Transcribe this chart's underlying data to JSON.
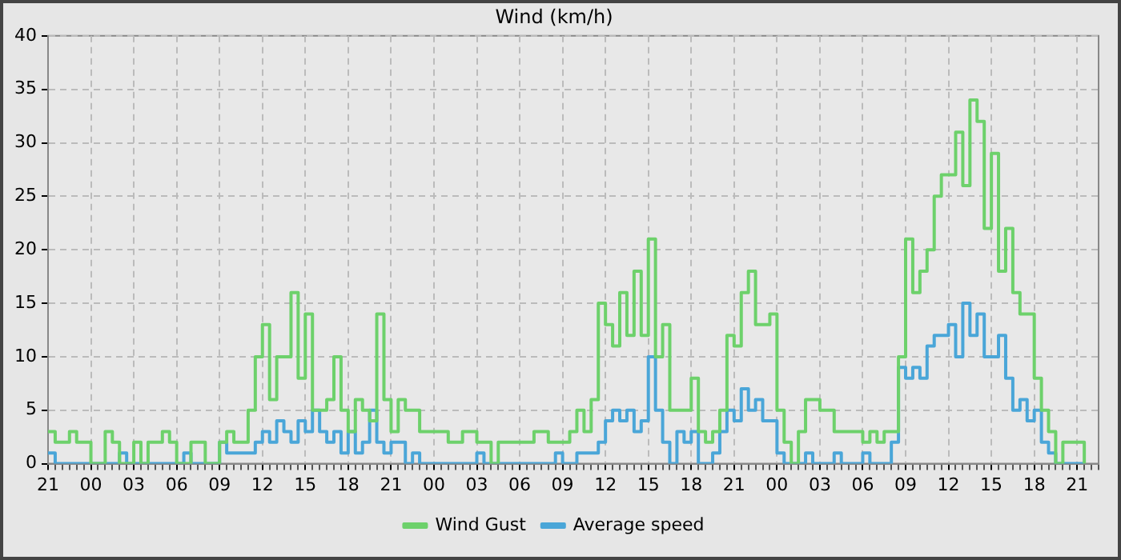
{
  "chart_data": {
    "type": "step",
    "title": "Wind (km/h)",
    "categories": [
      "21",
      null,
      null,
      null,
      null,
      null,
      "00",
      null,
      null,
      null,
      null,
      null,
      "03",
      null,
      null,
      null,
      null,
      null,
      "06",
      null,
      null,
      null,
      null,
      null,
      "09",
      null,
      null,
      null,
      null,
      null,
      "12",
      null,
      null,
      null,
      null,
      null,
      "15",
      null,
      null,
      null,
      null,
      null,
      "18",
      null,
      null,
      null,
      null,
      null,
      "21",
      null,
      null,
      null,
      null,
      null,
      "00",
      null,
      null,
      null,
      null,
      null,
      "03",
      null,
      null,
      null,
      null,
      null,
      "06",
      null,
      null,
      null,
      null,
      null,
      "09",
      null,
      null,
      null,
      null,
      null,
      "12",
      null,
      null,
      null,
      null,
      null,
      "15",
      null,
      null,
      null,
      null,
      null,
      "18",
      null,
      null,
      null,
      null,
      null,
      "21",
      null,
      null,
      null,
      null,
      null,
      "00",
      null,
      null,
      null,
      null,
      null,
      "03",
      null,
      null,
      null,
      null,
      null,
      "06",
      null,
      null,
      null,
      null,
      null,
      "09",
      null,
      null,
      null,
      null,
      null,
      "12",
      null,
      null,
      null,
      null,
      null,
      "15",
      null,
      null,
      null,
      null,
      null,
      "18",
      null,
      null,
      null,
      null,
      null,
      "21",
      null,
      null,
      null
    ],
    "ylim": [
      0,
      40
    ],
    "yticks": [
      0,
      5,
      10,
      15,
      20,
      25,
      30,
      35,
      40
    ],
    "grid": true,
    "legend": "bottom",
    "marker": "none",
    "series": [
      {
        "name": "Wind Gust",
        "color": "#6dd16b",
        "values": [
          3,
          2,
          2,
          3,
          2,
          2,
          0,
          0,
          3,
          2,
          0,
          0,
          2,
          0,
          2,
          2,
          3,
          2,
          0,
          0,
          2,
          2,
          0,
          0,
          2,
          3,
          2,
          2,
          5,
          10,
          13,
          6,
          10,
          10,
          16,
          8,
          14,
          5,
          5,
          6,
          10,
          5,
          3,
          6,
          5,
          4,
          14,
          6,
          3,
          6,
          5,
          5,
          3,
          3,
          3,
          3,
          2,
          2,
          3,
          3,
          2,
          2,
          0,
          2,
          2,
          2,
          2,
          2,
          3,
          3,
          2,
          2,
          2,
          3,
          5,
          3,
          6,
          15,
          13,
          11,
          16,
          12,
          18,
          12,
          21,
          10,
          13,
          5,
          5,
          5,
          8,
          3,
          2,
          3,
          5,
          12,
          11,
          16,
          18,
          13,
          13,
          14,
          5,
          2,
          0,
          3,
          6,
          6,
          5,
          5,
          3,
          3,
          3,
          3,
          2,
          3,
          2,
          3,
          3,
          10,
          21,
          16,
          18,
          20,
          25,
          27,
          27,
          31,
          26,
          34,
          32,
          22,
          29,
          18,
          22,
          16,
          14,
          14,
          8,
          5,
          3,
          0,
          2,
          2,
          2,
          0,
          null,
          null
        ]
      },
      {
        "name": "Average speed",
        "color": "#4aa6d8",
        "values": [
          1,
          0,
          0,
          0,
          0,
          0,
          0,
          0,
          0,
          0,
          1,
          0,
          0,
          0,
          0,
          0,
          0,
          0,
          0,
          1,
          0,
          0,
          0,
          0,
          2,
          1,
          1,
          1,
          1,
          2,
          3,
          2,
          4,
          3,
          2,
          4,
          3,
          5,
          3,
          2,
          3,
          1,
          3,
          1,
          2,
          5,
          2,
          1,
          2,
          2,
          0,
          1,
          0,
          0,
          0,
          0,
          0,
          0,
          0,
          0,
          1,
          0,
          0,
          0,
          0,
          0,
          0,
          0,
          0,
          0,
          0,
          1,
          0,
          0,
          1,
          1,
          1,
          2,
          4,
          5,
          4,
          5,
          3,
          4,
          10,
          5,
          2,
          0,
          3,
          2,
          3,
          0,
          0,
          1,
          3,
          5,
          4,
          7,
          5,
          6,
          4,
          4,
          1,
          0,
          0,
          0,
          1,
          0,
          0,
          0,
          1,
          0,
          0,
          0,
          1,
          0,
          0,
          0,
          2,
          9,
          8,
          9,
          8,
          11,
          12,
          12,
          13,
          10,
          15,
          12,
          14,
          10,
          10,
          12,
          8,
          5,
          6,
          4,
          5,
          2,
          1,
          0,
          0,
          0,
          0,
          0,
          null,
          null
        ]
      }
    ]
  }
}
